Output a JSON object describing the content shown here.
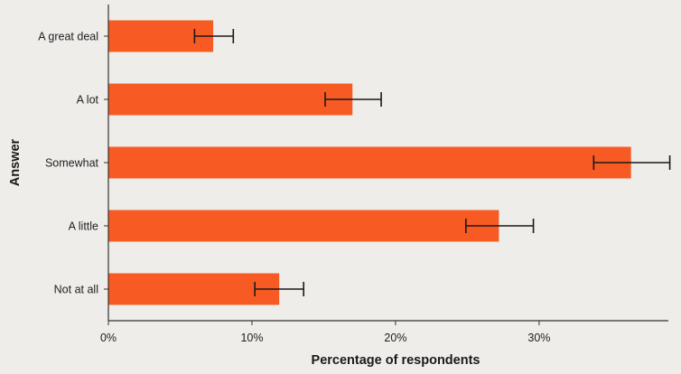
{
  "chart_data": {
    "type": "bar",
    "orientation": "horizontal",
    "categories": [
      "A great deal",
      "A lot",
      "Somewhat",
      "A little",
      "Not at all"
    ],
    "series": [
      {
        "values": [
          7.3,
          17.0,
          36.4,
          27.2,
          11.9
        ],
        "error_low": [
          6.0,
          15.1,
          33.8,
          24.9,
          10.2
        ],
        "error_high": [
          8.7,
          19.0,
          39.1,
          29.6,
          13.6
        ]
      }
    ],
    "xlabel": "Percentage of respondents",
    "ylabel": "Answer",
    "xlim": [
      0,
      39
    ],
    "xticks": [
      0,
      10,
      20,
      30
    ],
    "xtick_labels": [
      "0%",
      "10%",
      "20%",
      "30%"
    ],
    "grid": false,
    "legend": "none",
    "colors": {
      "bar": "#f75a22",
      "error_bar": "#1a1a1a",
      "axis": "#333333",
      "background": "#efedea"
    }
  }
}
